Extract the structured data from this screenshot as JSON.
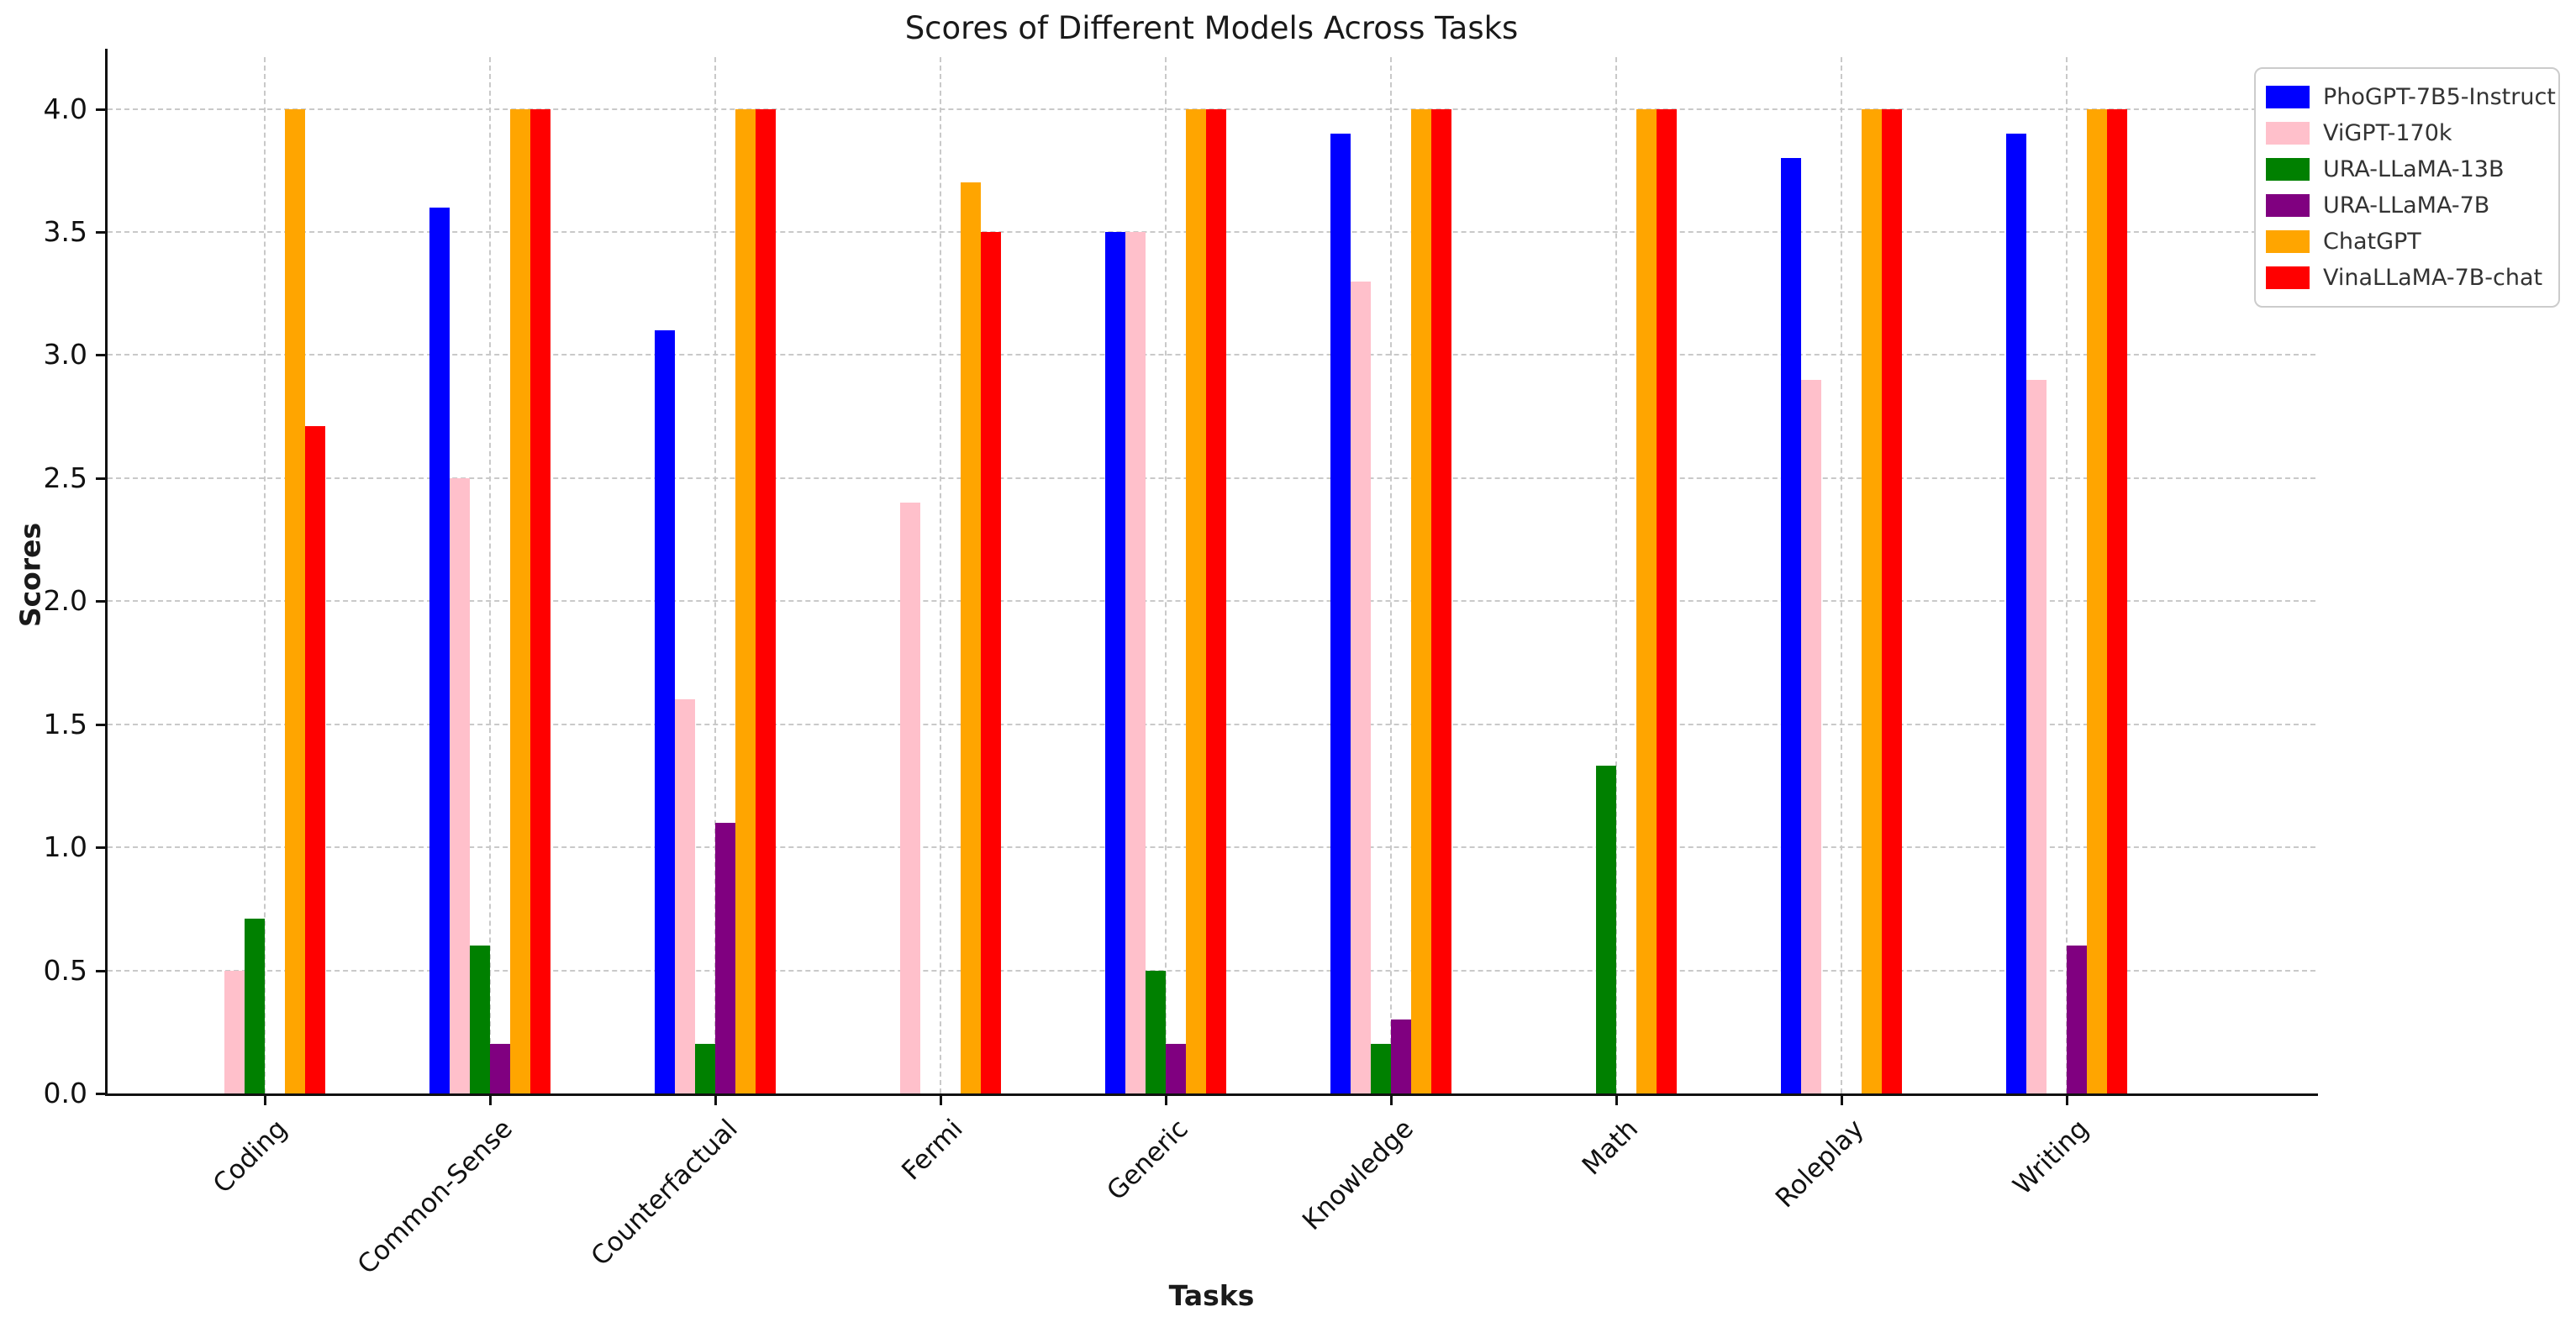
{
  "chart_data": {
    "type": "bar",
    "title": "Scores of Different Models Across Tasks",
    "xlabel": "Tasks",
    "ylabel": "Scores",
    "categories": [
      "Coding",
      "Common-Sense",
      "Counterfactual",
      "Fermi",
      "Generic",
      "Knowledge",
      "Math",
      "Roleplay",
      "Writing"
    ],
    "series": [
      {
        "name": "PhoGPT-7B5-Instruct",
        "color": "#0000ff",
        "values": [
          0,
          3.6,
          3.1,
          0,
          3.5,
          3.9,
          0,
          3.8,
          3.9
        ]
      },
      {
        "name": "ViGPT-170k",
        "color": "#ffc0cb",
        "values": [
          0.5,
          2.5,
          1.6,
          2.4,
          3.5,
          3.3,
          0,
          2.9,
          2.9
        ]
      },
      {
        "name": "URA-LLaMA-13B",
        "color": "#008000",
        "values": [
          0.71,
          0.6,
          0.2,
          0,
          0.5,
          0.2,
          1.33,
          0,
          0
        ]
      },
      {
        "name": "URA-LLaMA-7B",
        "color": "#800080",
        "values": [
          0,
          0.2,
          1.1,
          0,
          0.2,
          0.3,
          0,
          0,
          0.6
        ]
      },
      {
        "name": "ChatGPT",
        "color": "#ffa500",
        "values": [
          4.0,
          4.0,
          4.0,
          3.7,
          4.0,
          4.0,
          4.0,
          4.0,
          4.0
        ]
      },
      {
        "name": "VinaLLaMA-7B-chat",
        "color": "#ff0000",
        "values": [
          2.71,
          4.0,
          4.0,
          3.5,
          4.0,
          4.0,
          4.0,
          4.0,
          4.0
        ]
      }
    ],
    "yticks": [
      "0.0",
      "0.5",
      "1.0",
      "1.5",
      "2.0",
      "2.5",
      "3.0",
      "3.5",
      "4.0"
    ],
    "ylim": [
      0,
      4.21
    ],
    "grid": true,
    "legend_position": "upper right",
    "colors": {
      "grid": "#c9c9c9",
      "spine": "#111111",
      "text": "#1a1a1a",
      "legend_border": "#cccccc"
    }
  }
}
